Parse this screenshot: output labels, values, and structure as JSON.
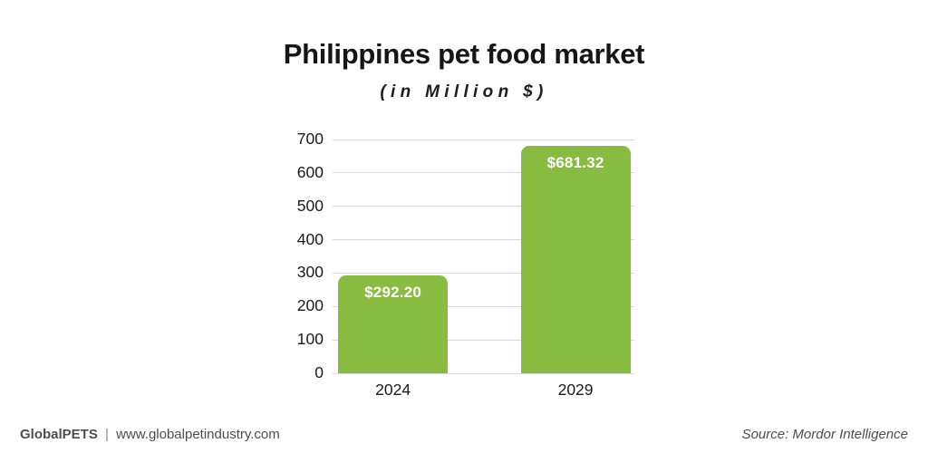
{
  "chart_data": {
    "type": "bar",
    "title": "Philippines pet food market",
    "subtitle": "(in Million $)",
    "categories": [
      "2024",
      "2029"
    ],
    "values": [
      292.2,
      681.32
    ],
    "value_labels": [
      "$292.20",
      "$681.32"
    ],
    "xlabel": "",
    "ylabel": "",
    "ylim": [
      0,
      700
    ],
    "yticks": [
      0,
      100,
      200,
      300,
      400,
      500,
      600,
      700
    ],
    "grid": true,
    "legend": "none",
    "bar_color": "#87BC40",
    "value_label_color": "#ffffff",
    "gridline_color": "#d9d9d9"
  },
  "footer": {
    "brand": "GlobalPETS",
    "separator": "|",
    "website": "www.globalpetindustry.com",
    "source": "Source: Mordor Intelligence"
  },
  "colors": {
    "background": "#ffffff",
    "title_text": "#161616",
    "axis_text": "#1a1a1a",
    "footer_text": "#4d4d4d"
  }
}
